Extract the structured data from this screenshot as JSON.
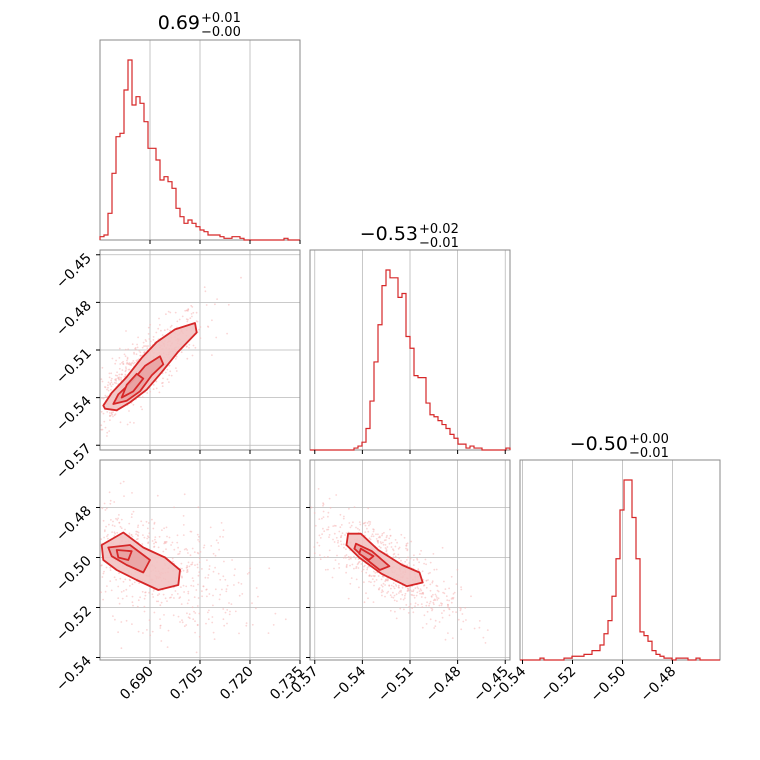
{
  "colors": {
    "series": "#d62728",
    "fill_light": "#f2c2c2",
    "fill_mid": "#e9a3a3",
    "scatter": "#f5b5b5",
    "frame": "#8a8a8a",
    "grid": "#b8b8b8"
  },
  "chart_data": {
    "type": "corner",
    "parameters": [
      {
        "median": "0.69",
        "plus": "+0.01",
        "minus": "−0.00",
        "range": [
          0.675,
          0.735
        ],
        "ticks": [
          0.69,
          0.705,
          0.72,
          0.735
        ],
        "tick_labels": [
          "0.690",
          "0.705",
          "0.720",
          "0.735"
        ]
      },
      {
        "median": "−0.53",
        "plus": "+0.02",
        "minus": "−0.01",
        "range": [
          -0.573,
          -0.447
        ],
        "ticks": [
          -0.57,
          -0.54,
          -0.51,
          -0.48,
          -0.45
        ],
        "tick_labels": [
          "−0.57",
          "−0.54",
          "−0.51",
          "−0.48",
          "−0.45"
        ]
      },
      {
        "median": "−0.50",
        "plus": "+0.00",
        "minus": "−0.01",
        "range": [
          -0.541,
          -0.461
        ],
        "ticks": [
          -0.54,
          -0.52,
          -0.5,
          -0.48
        ],
        "tick_labels": [
          "−0.54",
          "−0.52",
          "−0.50",
          "−0.48"
        ]
      }
    ],
    "histograms": [
      [
        2,
        3,
        16,
        40,
        62,
        64,
        90,
        108,
        81,
        86,
        82,
        71,
        55,
        55,
        48,
        36,
        38,
        35,
        31,
        19,
        14,
        10,
        12,
        10,
        8,
        6,
        5,
        3,
        3,
        3,
        2,
        1,
        1,
        2,
        2,
        1,
        0,
        0,
        0,
        0,
        0,
        0,
        0,
        0,
        0,
        0,
        1,
        0,
        0,
        0
      ],
      [
        0,
        0,
        0,
        0,
        0,
        0,
        0,
        0,
        0,
        0,
        0,
        1,
        2,
        4,
        11,
        25,
        45,
        64,
        84,
        92,
        88,
        88,
        78,
        80,
        58,
        52,
        38,
        37,
        37,
        24,
        18,
        17,
        15,
        13,
        11,
        8,
        6,
        3,
        3,
        1,
        2,
        1,
        1,
        0,
        0,
        0,
        0,
        0,
        0,
        1
      ],
      [
        0,
        0,
        0,
        0,
        0,
        1,
        0,
        0,
        0,
        0,
        0,
        1,
        1,
        2,
        2,
        2,
        3,
        3,
        5,
        5,
        8,
        14,
        21,
        34,
        54,
        80,
        96,
        96,
        76,
        54,
        15,
        13,
        10,
        5,
        3,
        2,
        1,
        1,
        0,
        1,
        1,
        1,
        0,
        0,
        1,
        0,
        0,
        0,
        0,
        0
      ]
    ],
    "contours": [
      {
        "x": 0,
        "y": 1,
        "levels": [
          [
            [
              0.6765,
              -0.547
            ],
            [
              0.68,
              -0.548
            ],
            [
              0.684,
              -0.543
            ],
            [
              0.689,
              -0.535
            ],
            [
              0.6935,
              -0.524
            ],
            [
              0.6985,
              -0.511
            ],
            [
              0.704,
              -0.499
            ],
            [
              0.7035,
              -0.493
            ],
            [
              0.6975,
              -0.497
            ],
            [
              0.692,
              -0.505
            ],
            [
              0.6875,
              -0.515
            ],
            [
              0.683,
              -0.527
            ],
            [
              0.6785,
              -0.537
            ],
            [
              0.676,
              -0.545
            ]
          ],
          [
            [
              0.679,
              -0.544
            ],
            [
              0.683,
              -0.542
            ],
            [
              0.687,
              -0.536
            ],
            [
              0.6905,
              -0.526
            ],
            [
              0.694,
              -0.519
            ],
            [
              0.693,
              -0.514
            ],
            [
              0.6885,
              -0.52
            ],
            [
              0.6845,
              -0.53
            ],
            [
              0.6805,
              -0.538
            ]
          ],
          [
            [
              0.6815,
              -0.54
            ],
            [
              0.685,
              -0.536
            ],
            [
              0.688,
              -0.528
            ],
            [
              0.686,
              -0.525
            ],
            [
              0.683,
              -0.532
            ]
          ]
        ]
      },
      {
        "x": 0,
        "y": 2,
        "levels": [
          [
            [
              0.6755,
              -0.495
            ],
            [
              0.682,
              -0.49
            ],
            [
              0.688,
              -0.496
            ],
            [
              0.6945,
              -0.5
            ],
            [
              0.699,
              -0.505
            ],
            [
              0.6985,
              -0.511
            ],
            [
              0.6925,
              -0.513
            ],
            [
              0.686,
              -0.509
            ],
            [
              0.68,
              -0.505
            ],
            [
              0.676,
              -0.501
            ]
          ],
          [
            [
              0.6775,
              -0.496
            ],
            [
              0.684,
              -0.495
            ],
            [
              0.69,
              -0.501
            ],
            [
              0.688,
              -0.506
            ],
            [
              0.683,
              -0.503
            ],
            [
              0.6785,
              -0.4995
            ]
          ],
          [
            [
              0.68,
              -0.497
            ],
            [
              0.6845,
              -0.4975
            ],
            [
              0.6835,
              -0.501
            ],
            [
              0.6805,
              -0.5
            ]
          ]
        ]
      },
      {
        "x": 1,
        "y": 2,
        "levels": [
          [
            [
              -0.549,
              -0.4905
            ],
            [
              -0.541,
              -0.4905
            ],
            [
              -0.53,
              -0.497
            ],
            [
              -0.515,
              -0.503
            ],
            [
              -0.504,
              -0.506
            ],
            [
              -0.502,
              -0.51
            ],
            [
              -0.512,
              -0.5115
            ],
            [
              -0.528,
              -0.5065
            ],
            [
              -0.542,
              -0.5
            ],
            [
              -0.55,
              -0.495
            ]
          ],
          [
            [
              -0.544,
              -0.4945
            ],
            [
              -0.534,
              -0.4975
            ],
            [
              -0.523,
              -0.5035
            ],
            [
              -0.529,
              -0.505
            ],
            [
              -0.539,
              -0.5
            ],
            [
              -0.545,
              -0.4965
            ]
          ],
          [
            [
              -0.541,
              -0.4965
            ],
            [
              -0.533,
              -0.4995
            ],
            [
              -0.536,
              -0.501
            ],
            [
              -0.542,
              -0.4985
            ]
          ]
        ]
      }
    ],
    "grid": true,
    "scatter_points_approx": 700
  }
}
